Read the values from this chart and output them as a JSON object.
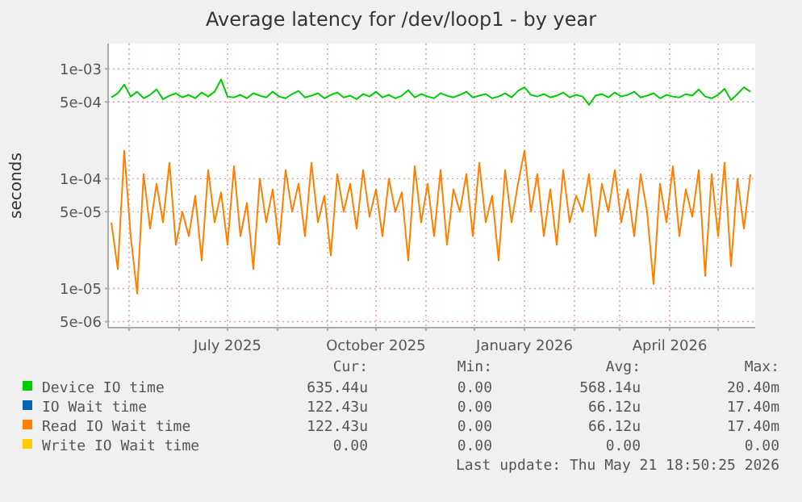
{
  "chart_data": {
    "type": "line",
    "title": "Average latency for /dev/loop1 - by year",
    "ylabel": "seconds",
    "log": "y",
    "grid": true,
    "legend": "bottom",
    "marker": "none",
    "line_style": "solid",
    "x": [
      "2025-04-20",
      "2025-04-24",
      "2025-04-28",
      "2025-05-02",
      "2025-05-06",
      "2025-05-10",
      "2025-05-14",
      "2025-05-18",
      "2025-05-22",
      "2025-05-26",
      "2025-05-30",
      "2025-06-03",
      "2025-06-07",
      "2025-06-11",
      "2025-06-15",
      "2025-06-19",
      "2025-06-23",
      "2025-06-27",
      "2025-07-01",
      "2025-07-05",
      "2025-07-09",
      "2025-07-13",
      "2025-07-17",
      "2025-07-21",
      "2025-07-25",
      "2025-07-29",
      "2025-08-02",
      "2025-08-06",
      "2025-08-10",
      "2025-08-14",
      "2025-08-18",
      "2025-08-22",
      "2025-08-26",
      "2025-08-30",
      "2025-09-03",
      "2025-09-07",
      "2025-09-11",
      "2025-09-15",
      "2025-09-19",
      "2025-09-23",
      "2025-09-27",
      "2025-10-01",
      "2025-10-05",
      "2025-10-09",
      "2025-10-13",
      "2025-10-17",
      "2025-10-21",
      "2025-10-25",
      "2025-10-29",
      "2025-11-02",
      "2025-11-06",
      "2025-11-10",
      "2025-11-14",
      "2025-11-18",
      "2025-11-22",
      "2025-11-26",
      "2025-11-30",
      "2025-12-04",
      "2025-12-08",
      "2025-12-12",
      "2025-12-16",
      "2025-12-20",
      "2025-12-24",
      "2025-12-28",
      "2026-01-01",
      "2026-01-05",
      "2026-01-09",
      "2026-01-13",
      "2026-01-17",
      "2026-01-21",
      "2026-01-25",
      "2026-01-29",
      "2026-02-02",
      "2026-02-06",
      "2026-02-10",
      "2026-02-14",
      "2026-02-18",
      "2026-02-22",
      "2026-02-26",
      "2026-03-02",
      "2026-03-06",
      "2026-03-10",
      "2026-03-14",
      "2026-03-18",
      "2026-03-22",
      "2026-03-26",
      "2026-03-30",
      "2026-04-03",
      "2026-04-07",
      "2026-04-11",
      "2026-04-15",
      "2026-04-19",
      "2026-04-23",
      "2026-04-27",
      "2026-05-01",
      "2026-05-05",
      "2026-05-09",
      "2026-05-13",
      "2026-05-17",
      "2026-05-21"
    ],
    "xlim": [
      "2025-04-18",
      "2026-05-24"
    ],
    "xticks": [
      {
        "value": "2025-05-01",
        "label": null
      },
      {
        "value": "2025-06-01",
        "label": null
      },
      {
        "value": "2025-07-01",
        "label": "July 2025"
      },
      {
        "value": "2025-08-01",
        "label": null
      },
      {
        "value": "2025-09-01",
        "label": null
      },
      {
        "value": "2025-10-01",
        "label": "October 2025"
      },
      {
        "value": "2025-11-01",
        "label": null
      },
      {
        "value": "2025-12-01",
        "label": null
      },
      {
        "value": "2026-01-01",
        "label": "January 2026"
      },
      {
        "value": "2026-02-01",
        "label": null
      },
      {
        "value": "2026-03-01",
        "label": null
      },
      {
        "value": "2026-04-01",
        "label": "April 2026"
      },
      {
        "value": "2026-05-01",
        "label": null
      }
    ],
    "ylim": [
      4.4e-06,
      0.0017
    ],
    "yticks": [
      {
        "value": 5e-06,
        "label": "5e-06"
      },
      {
        "value": 1e-05,
        "label": "1e-05"
      },
      {
        "value": 5e-05,
        "label": "5e-05"
      },
      {
        "value": 0.0001,
        "label": "1e-04"
      },
      {
        "value": 0.0005,
        "label": "5e-04"
      },
      {
        "value": 0.001,
        "label": "1e-03"
      }
    ],
    "series": [
      {
        "name": "Device IO time",
        "color": "#00cc00",
        "values": [
          0.00055,
          0.0006,
          0.00072,
          0.00056,
          0.00062,
          0.00054,
          0.00058,
          0.00065,
          0.00053,
          0.00057,
          0.0006,
          0.00055,
          0.00058,
          0.00054,
          0.00061,
          0.00056,
          0.00062,
          0.0008,
          0.00056,
          0.00055,
          0.00058,
          0.00054,
          0.0006,
          0.00057,
          0.00055,
          0.00062,
          0.00056,
          0.00054,
          0.00059,
          0.00063,
          0.00055,
          0.00057,
          0.0006,
          0.00054,
          0.00058,
          0.00061,
          0.00055,
          0.00057,
          0.00053,
          0.00059,
          0.00056,
          0.00062,
          0.00055,
          0.00058,
          0.00054,
          0.00057,
          0.00064,
          0.00055,
          0.00059,
          0.00056,
          0.00054,
          0.0006,
          0.00057,
          0.00055,
          0.00058,
          0.00062,
          0.00055,
          0.00057,
          0.00059,
          0.00054,
          0.00056,
          0.0006,
          0.00055,
          0.00063,
          0.00068,
          0.00058,
          0.00056,
          0.00059,
          0.00055,
          0.00057,
          0.00061,
          0.00055,
          0.00058,
          0.00056,
          0.00047,
          0.00057,
          0.00059,
          0.00055,
          0.00061,
          0.00056,
          0.00058,
          0.00062,
          0.00055,
          0.00057,
          0.0006,
          0.00054,
          0.00058,
          0.00056,
          0.00055,
          0.00059,
          0.00057,
          0.00065,
          0.00056,
          0.00054,
          0.00058,
          0.00066,
          0.00052,
          0.00059,
          0.00068,
          0.00062
        ]
      },
      {
        "name": "IO Wait time",
        "color": "#0066b3",
        "values": [
          null,
          null,
          null,
          null,
          null,
          null,
          null,
          null,
          null,
          null,
          null,
          null,
          null,
          null,
          null,
          null,
          null,
          null,
          null,
          null,
          null,
          null,
          null,
          null,
          null,
          null,
          null,
          null,
          null,
          null,
          null,
          null,
          null,
          null,
          null,
          null,
          null,
          null,
          null,
          null,
          null,
          null,
          null,
          null,
          null,
          null,
          null,
          null,
          null,
          null,
          null,
          null,
          null,
          null,
          null,
          null,
          null,
          null,
          null,
          null,
          null,
          null,
          null,
          null,
          null,
          null,
          null,
          null,
          null,
          null,
          null,
          null,
          null,
          null,
          null,
          null,
          null,
          null,
          null,
          null,
          null,
          null,
          null,
          null,
          null,
          null,
          null,
          null,
          null,
          null,
          null,
          null,
          null,
          null,
          null,
          null,
          null,
          null,
          null,
          null
        ]
      },
      {
        "name": "Read IO Wait time",
        "color": "#ff8000",
        "values": [
          4e-05,
          1.5e-05,
          0.00018,
          3e-05,
          9e-06,
          0.00011,
          3.5e-05,
          9e-05,
          4e-05,
          0.00014,
          2.5e-05,
          5e-05,
          3e-05,
          7e-05,
          1.8e-05,
          0.00012,
          4e-05,
          7.5e-05,
          2.5e-05,
          0.00013,
          3e-05,
          6e-05,
          1.5e-05,
          0.0001,
          4e-05,
          8e-05,
          2.5e-05,
          0.00012,
          5e-05,
          9e-05,
          3e-05,
          0.00014,
          4e-05,
          7e-05,
          2e-05,
          0.00011,
          5e-05,
          9e-05,
          3.5e-05,
          0.00012,
          4.5e-05,
          8e-05,
          3e-05,
          0.0001,
          5e-05,
          7.5e-05,
          1.8e-05,
          0.00013,
          4e-05,
          9e-05,
          3e-05,
          0.00012,
          2.5e-05,
          8e-05,
          5e-05,
          0.00011,
          3e-05,
          0.00014,
          4e-05,
          7e-05,
          1.8e-05,
          0.00012,
          4e-05,
          9e-05,
          0.00018,
          5e-05,
          0.00011,
          3e-05,
          8e-05,
          2.5e-05,
          0.00012,
          4e-05,
          7e-05,
          5e-05,
          0.00011,
          3e-05,
          9e-05,
          5e-05,
          0.00012,
          4e-05,
          8e-05,
          3e-05,
          0.00011,
          5e-05,
          1.1e-05,
          9e-05,
          4e-05,
          0.00013,
          3e-05,
          8e-05,
          4.5e-05,
          0.00012,
          1.3e-05,
          0.00011,
          3e-05,
          0.00014,
          1.6e-05,
          0.0001,
          3.5e-05,
          0.00011
        ]
      },
      {
        "name": "Write IO Wait time",
        "color": "#ffcc00",
        "values": [
          null,
          null,
          null,
          null,
          null,
          null,
          null,
          null,
          null,
          null,
          null,
          null,
          null,
          null,
          null,
          null,
          null,
          null,
          null,
          null,
          null,
          null,
          null,
          null,
          null,
          null,
          null,
          null,
          null,
          null,
          null,
          null,
          null,
          null,
          null,
          null,
          null,
          null,
          null,
          null,
          null,
          null,
          null,
          null,
          null,
          null,
          null,
          null,
          null,
          null,
          null,
          null,
          null,
          null,
          null,
          null,
          null,
          null,
          null,
          null,
          null,
          null,
          null,
          null,
          null,
          null,
          null,
          null,
          null,
          null,
          null,
          null,
          null,
          null,
          null,
          null,
          null,
          null,
          null,
          null,
          null,
          null,
          null,
          null,
          null,
          null,
          null,
          null,
          null,
          null,
          null,
          null,
          null,
          null,
          null,
          null,
          null,
          null,
          null,
          null
        ]
      }
    ],
    "annotations": [
      "Cur:",
      "Min:",
      "Avg:",
      "Max:",
      "635.44u",
      "0.00",
      "568.14u",
      "20.40m",
      "122.43u",
      "0.00",
      "66.12u",
      "17.40m",
      "122.43u",
      "0.00",
      "66.12u",
      "17.40m",
      "0.00",
      "0.00",
      "0.00",
      "0.00",
      "Last update: Thu May 21 18:50:25 2026"
    ]
  }
}
